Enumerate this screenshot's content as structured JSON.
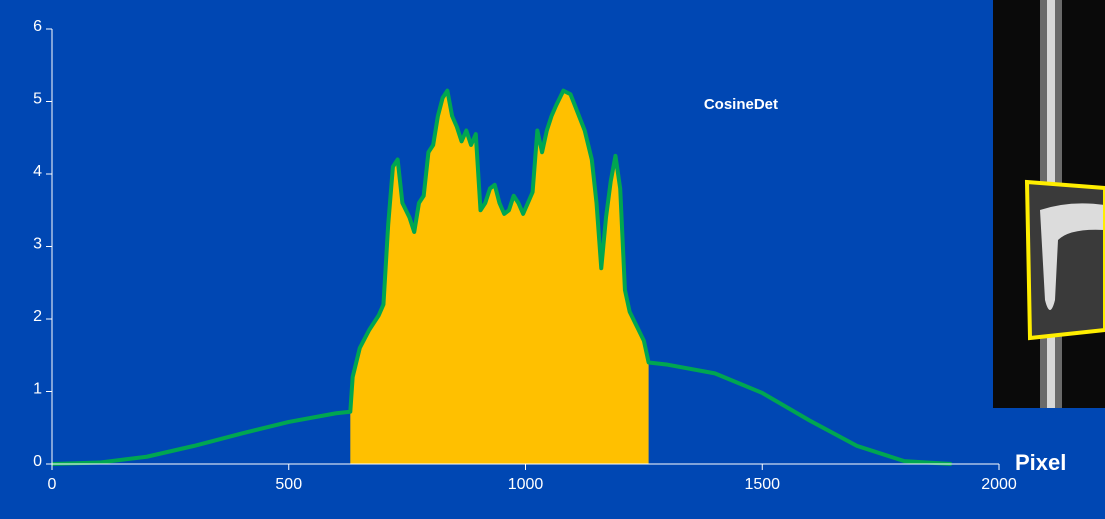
{
  "chart_data": {
    "type": "line",
    "x_label": "Pixel",
    "annotation": {
      "text": "CosineDet",
      "x": 1455,
      "y": 4.95
    },
    "xlim": [
      0,
      2000
    ],
    "xticks": [
      0,
      500,
      1000,
      1500,
      2000
    ],
    "ylim": [
      0,
      6
    ],
    "yticks": [
      0,
      1,
      2,
      3,
      4,
      5,
      6
    ],
    "grid": false,
    "series": [
      {
        "color": "#ffc000",
        "fill": true,
        "x": [
          630,
          635,
          650,
          670,
          690,
          700,
          710,
          720,
          730,
          740,
          755,
          765,
          775,
          785,
          795,
          805,
          815,
          825,
          835,
          845,
          855,
          865,
          875,
          885,
          895,
          905,
          915,
          925,
          935,
          945,
          955,
          965,
          975,
          985,
          995,
          1005,
          1015,
          1025,
          1035,
          1045,
          1055,
          1065,
          1080,
          1095,
          1110,
          1125,
          1140,
          1150,
          1160,
          1170,
          1180,
          1190,
          1200,
          1210,
          1220,
          1235,
          1250,
          1260
        ],
        "values": [
          0.72,
          1.2,
          1.6,
          1.85,
          2.05,
          2.2,
          3.3,
          4.1,
          4.2,
          3.6,
          3.4,
          3.2,
          3.6,
          3.7,
          4.3,
          4.4,
          4.8,
          5.05,
          5.15,
          4.8,
          4.65,
          4.45,
          4.6,
          4.4,
          4.55,
          3.5,
          3.6,
          3.8,
          3.85,
          3.6,
          3.45,
          3.5,
          3.7,
          3.6,
          3.45,
          3.6,
          3.75,
          4.6,
          4.3,
          4.6,
          4.8,
          4.95,
          5.15,
          5.1,
          4.85,
          4.6,
          4.2,
          3.6,
          2.7,
          3.4,
          3.9,
          4.25,
          3.8,
          2.4,
          2.1,
          1.9,
          1.7,
          1.4
        ]
      },
      {
        "color": "#00a651",
        "fill": false,
        "x": [
          0,
          100,
          200,
          300,
          400,
          500,
          600,
          630,
          635,
          650,
          670,
          690,
          700,
          710,
          720,
          730,
          740,
          755,
          765,
          775,
          785,
          795,
          805,
          815,
          825,
          835,
          845,
          855,
          865,
          875,
          885,
          895,
          905,
          915,
          925,
          935,
          945,
          955,
          965,
          975,
          985,
          995,
          1005,
          1015,
          1025,
          1035,
          1045,
          1055,
          1065,
          1080,
          1095,
          1110,
          1125,
          1140,
          1150,
          1160,
          1170,
          1180,
          1190,
          1200,
          1210,
          1220,
          1235,
          1250,
          1260,
          1300,
          1400,
          1500,
          1600,
          1700,
          1800,
          1900
        ],
        "values": [
          0,
          0.02,
          0.1,
          0.25,
          0.42,
          0.58,
          0.7,
          0.72,
          1.2,
          1.6,
          1.85,
          2.05,
          2.2,
          3.3,
          4.1,
          4.2,
          3.6,
          3.4,
          3.2,
          3.6,
          3.7,
          4.3,
          4.4,
          4.8,
          5.05,
          5.15,
          4.8,
          4.65,
          4.45,
          4.6,
          4.4,
          4.55,
          3.5,
          3.6,
          3.8,
          3.85,
          3.6,
          3.45,
          3.5,
          3.7,
          3.6,
          3.45,
          3.6,
          3.75,
          4.6,
          4.3,
          4.6,
          4.8,
          4.95,
          5.15,
          5.1,
          4.85,
          4.6,
          4.2,
          3.6,
          2.7,
          3.4,
          3.9,
          4.25,
          3.8,
          2.4,
          2.1,
          1.9,
          1.7,
          1.4,
          1.37,
          1.25,
          0.98,
          0.6,
          0.25,
          0.04,
          0
        ]
      }
    ]
  }
}
